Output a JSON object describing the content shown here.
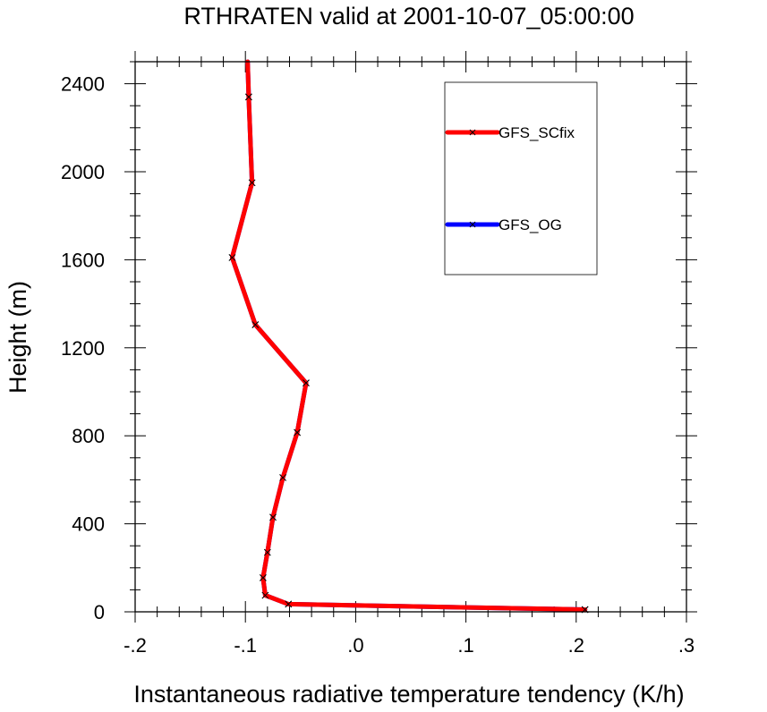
{
  "chart_data": {
    "type": "line",
    "title": "RTHRATEN valid at 2001-10-07_05:00:00",
    "xlabel": "Instantaneous radiative temperature tendency (K/h)",
    "ylabel": "Height (m)",
    "xlim": [
      -0.2,
      0.3
    ],
    "ylim": [
      0,
      2500
    ],
    "x_ticks": [
      -0.2,
      -0.1,
      0.0,
      0.1,
      0.2,
      0.3
    ],
    "x_tick_labels": [
      "-.2",
      "-.1",
      ".0",
      ".1",
      ".2",
      ".3"
    ],
    "y_ticks": [
      0,
      400,
      800,
      1200,
      1600,
      2000,
      2400
    ],
    "y_tick_labels": [
      "0",
      "400",
      "800",
      "1200",
      "1600",
      "2000",
      "2400"
    ],
    "legend_position": "top-right",
    "series": [
      {
        "name": "GFS_OG",
        "color": "#0000ff",
        "marker": "x",
        "points": [
          {
            "x": 0.208,
            "y": 10
          },
          {
            "x": -0.061,
            "y": 35
          },
          {
            "x": -0.082,
            "y": 75
          },
          {
            "x": -0.084,
            "y": 155
          },
          {
            "x": -0.08,
            "y": 270
          },
          {
            "x": -0.075,
            "y": 430
          },
          {
            "x": -0.066,
            "y": 610
          },
          {
            "x": -0.053,
            "y": 815
          },
          {
            "x": -0.045,
            "y": 1040
          },
          {
            "x": -0.091,
            "y": 1305
          },
          {
            "x": -0.112,
            "y": 1610
          },
          {
            "x": -0.094,
            "y": 1950
          },
          {
            "x": -0.097,
            "y": 2340
          },
          {
            "x": -0.098,
            "y": 2500
          }
        ]
      },
      {
        "name": "GFS_SCfix",
        "color": "#ff0000",
        "marker": "x",
        "points": [
          {
            "x": 0.208,
            "y": 10
          },
          {
            "x": -0.061,
            "y": 35
          },
          {
            "x": -0.082,
            "y": 75
          },
          {
            "x": -0.084,
            "y": 155
          },
          {
            "x": -0.08,
            "y": 270
          },
          {
            "x": -0.075,
            "y": 430
          },
          {
            "x": -0.066,
            "y": 610
          },
          {
            "x": -0.053,
            "y": 815
          },
          {
            "x": -0.045,
            "y": 1040
          },
          {
            "x": -0.091,
            "y": 1305
          },
          {
            "x": -0.112,
            "y": 1610
          },
          {
            "x": -0.094,
            "y": 1950
          },
          {
            "x": -0.097,
            "y": 2340
          },
          {
            "x": -0.098,
            "y": 2500
          }
        ]
      }
    ]
  }
}
